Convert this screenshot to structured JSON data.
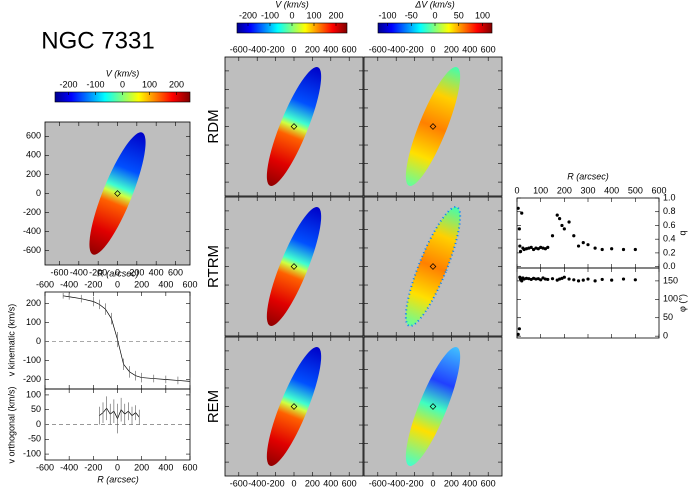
{
  "title": "NGC 7331",
  "chart_data": [
    {
      "type": "colorbar",
      "label": "V (km/s)",
      "xlim": [
        -250,
        250
      ],
      "xticks": [
        -200,
        -100,
        0,
        100,
        200
      ]
    },
    {
      "type": "map",
      "xlim": [
        -750,
        750
      ],
      "ylim": [
        -750,
        750
      ],
      "xticks": [
        -600,
        -400,
        -200,
        0,
        200,
        400,
        600
      ],
      "yticks": [
        -600,
        -400,
        -200,
        0,
        200,
        400,
        600
      ]
    },
    {
      "type": "scatter",
      "xlabel": "R (arcsec)",
      "ylabel": "v kinematic (km/s)",
      "xlim": [
        -600,
        600
      ],
      "ylim": [
        -250,
        260
      ],
      "xticks": [
        -600,
        -400,
        -200,
        0,
        200,
        400,
        600
      ],
      "yticks": [
        -200,
        -100,
        0,
        100,
        200
      ],
      "hline": 0,
      "series": [
        {
          "name": "v kinematic",
          "x": [
            -450,
            -400,
            -300,
            -200,
            -150,
            -100,
            -50,
            0,
            50,
            100,
            150,
            200,
            300,
            400,
            500,
            600
          ],
          "values": [
            240,
            235,
            225,
            210,
            195,
            170,
            120,
            10,
            -120,
            -160,
            -180,
            -190,
            -195,
            -200,
            -205,
            -210
          ],
          "errors": [
            15,
            15,
            20,
            25,
            25,
            30,
            30,
            40,
            30,
            30,
            25,
            25,
            20,
            20,
            20,
            20
          ]
        }
      ]
    },
    {
      "type": "scatter",
      "xlabel": "R (arcsec)",
      "ylabel": "v orthogonal (km/s)",
      "xlim": [
        -600,
        600
      ],
      "ylim": [
        -120,
        120
      ],
      "xticks": [
        -600,
        -400,
        -200,
        0,
        200,
        400,
        600
      ],
      "yticks": [
        -100,
        -50,
        0,
        50,
        100
      ],
      "hline": 0,
      "series": [
        {
          "name": "v orthogonal",
          "x": [
            -150,
            -120,
            -90,
            -60,
            -30,
            0,
            30,
            60,
            90,
            120,
            150,
            180
          ],
          "values": [
            30,
            40,
            55,
            35,
            45,
            20,
            50,
            35,
            45,
            30,
            40,
            25
          ],
          "errors": [
            30,
            35,
            40,
            35,
            40,
            50,
            40,
            35,
            30,
            30,
            25,
            25
          ]
        }
      ]
    },
    {
      "type": "colorbar",
      "label": "V (km/s)",
      "xlim": [
        -250,
        250
      ],
      "xticks": [
        -200,
        -100,
        0,
        100,
        200
      ]
    },
    {
      "type": "colorbar",
      "label": "ΔV (km/s)",
      "xlim": [
        -120,
        120
      ],
      "xticks": [
        -100,
        -50,
        0,
        50,
        100
      ]
    },
    {
      "type": "map-grid",
      "rows": [
        "RDM",
        "RTRM",
        "REM"
      ],
      "xlim": [
        -750,
        750
      ],
      "ylim": [
        -750,
        750
      ],
      "xticks": [
        -600,
        -400,
        -200,
        0,
        200,
        400,
        600
      ],
      "yticks": [
        -600,
        -400,
        -200,
        0,
        200,
        400,
        600
      ]
    },
    {
      "type": "scatter",
      "xlabel": "R (arcsec)",
      "ylabel": "q",
      "xlim": [
        0,
        600
      ],
      "ylim": [
        -0.02,
        1.0
      ],
      "xticks": [
        0,
        100,
        200,
        300,
        400,
        500,
        600
      ],
      "yticks": [
        {
          "value": 0,
          "label": "0.0"
        },
        {
          "value": 0.2,
          "label": "0.2"
        },
        {
          "value": 0.4,
          "label": "0.4"
        },
        {
          "value": 0.6,
          "label": "0.6"
        },
        {
          "value": 0.8,
          "label": "0.8"
        },
        {
          "value": 1,
          "label": "1.0"
        }
      ],
      "series": [
        {
          "name": "q",
          "x": [
            5,
            10,
            12,
            15,
            20,
            25,
            30,
            40,
            50,
            60,
            70,
            80,
            90,
            100,
            110,
            120,
            130,
            150,
            170,
            180,
            190,
            200,
            220,
            240,
            260,
            280,
            300,
            330,
            360,
            400,
            450,
            500
          ],
          "values": [
            0.85,
            0.55,
            0.3,
            0.22,
            0.78,
            0.27,
            0.25,
            0.26,
            0.27,
            0.28,
            0.25,
            0.27,
            0.26,
            0.28,
            0.27,
            0.26,
            0.28,
            0.45,
            0.75,
            0.7,
            0.6,
            0.55,
            0.65,
            0.45,
            0.3,
            0.35,
            0.32,
            0.27,
            0.25,
            0.26,
            0.25,
            0.25
          ]
        }
      ]
    },
    {
      "type": "scatter",
      "xlabel": "R (arcsec)",
      "ylabel": "φ (°)",
      "xlim": [
        0,
        600
      ],
      "ylim": [
        -5,
        185
      ],
      "xticks": [
        0,
        100,
        200,
        300,
        400,
        500,
        600
      ],
      "yticks": [
        0,
        50,
        100,
        150
      ],
      "series": [
        {
          "name": "φ",
          "x": [
            5,
            10,
            12,
            15,
            20,
            25,
            30,
            40,
            50,
            60,
            70,
            80,
            90,
            100,
            110,
            120,
            130,
            150,
            170,
            180,
            190,
            200,
            220,
            240,
            260,
            280,
            300,
            330,
            360,
            400,
            450,
            500
          ],
          "values": [
            5,
            20,
            160,
            155,
            150,
            158,
            155,
            157,
            156,
            154,
            157,
            155,
            156,
            153,
            158,
            155,
            154,
            156,
            152,
            155,
            157,
            160,
            155,
            153,
            150,
            152,
            155,
            150,
            154,
            152,
            155,
            153
          ]
        }
      ]
    }
  ]
}
